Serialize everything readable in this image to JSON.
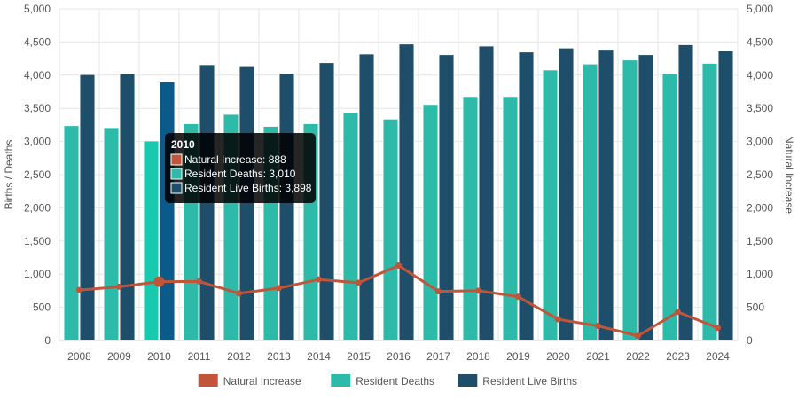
{
  "chart_data": {
    "type": "bar",
    "categories": [
      "2008",
      "2009",
      "2010",
      "2011",
      "2012",
      "2013",
      "2014",
      "2015",
      "2016",
      "2017",
      "2018",
      "2019",
      "2020",
      "2021",
      "2022",
      "2023",
      "2024"
    ],
    "series": [
      {
        "name": "Natural Increase",
        "type": "line",
        "axis": "right",
        "color": "#c0553a",
        "values": [
          760,
          810,
          888,
          890,
          710,
          790,
          920,
          870,
          1130,
          740,
          750,
          660,
          320,
          220,
          70,
          430,
          190
        ]
      },
      {
        "name": "Resident Deaths",
        "type": "bar",
        "axis": "left",
        "color": "#2ebaa8",
        "values": [
          3240,
          3210,
          3010,
          3270,
          3410,
          3230,
          3270,
          3440,
          3340,
          3560,
          3680,
          3680,
          4080,
          4170,
          4230,
          4030,
          4180
        ]
      },
      {
        "name": "Resident Live Births",
        "type": "bar",
        "axis": "left",
        "color": "#1f4e6b",
        "values": [
          4010,
          4020,
          3898,
          4160,
          4130,
          4030,
          4190,
          4320,
          4470,
          4310,
          4440,
          4350,
          4410,
          4390,
          4310,
          4460,
          4370
        ]
      }
    ],
    "ylabel": "Births / Deaths",
    "y2label": "Natural Increase",
    "ylim": [
      0,
      5000
    ],
    "y2lim": [
      0,
      5000
    ],
    "yticks": [
      "0",
      "500",
      "1,000",
      "1,500",
      "2,000",
      "2,500",
      "3,000",
      "3,500",
      "4,000",
      "4,500",
      "5,000"
    ],
    "y2ticks": [
      "0",
      "500",
      "1,000",
      "1,500",
      "2,000",
      "2,500",
      "3,000",
      "3,500",
      "4,000",
      "4,500",
      "5,000"
    ],
    "grid": true,
    "legend_position": "bottom",
    "highlight_index": 2,
    "highlight_color": "#0a5a8a",
    "tooltip": {
      "title": "2010",
      "lines": [
        "Natural Increase: 888",
        "Resident Deaths: 3,010",
        "Resident Live Births: 3,898"
      ]
    }
  }
}
